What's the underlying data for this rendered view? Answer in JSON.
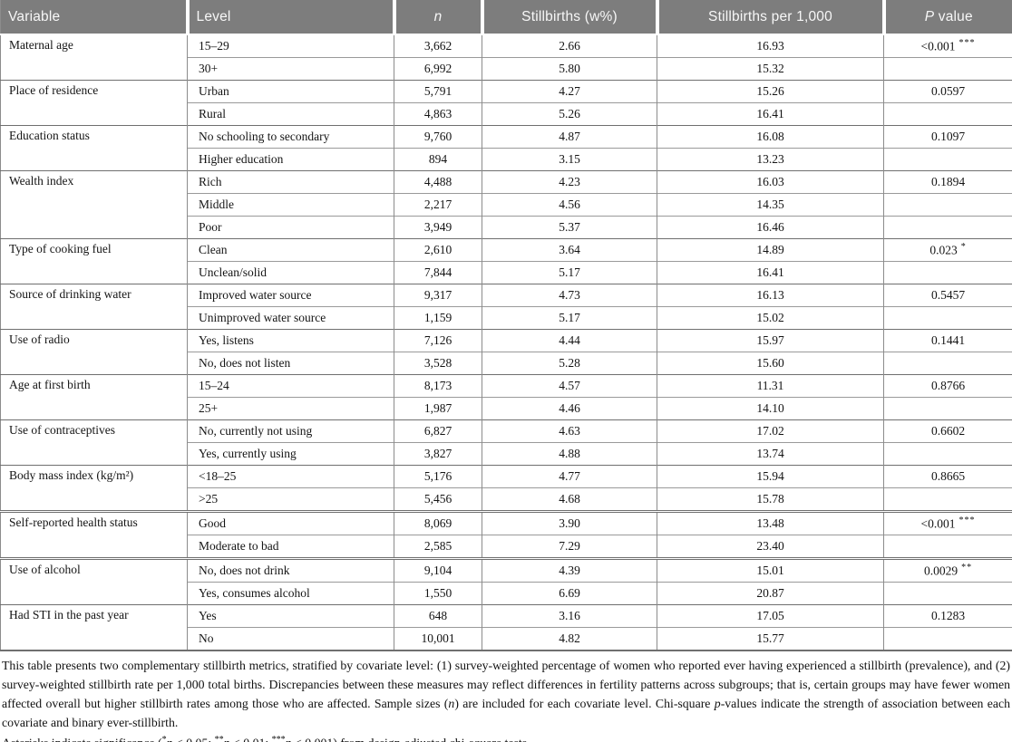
{
  "colors": {
    "header_background": "#7d7d7d",
    "header_text": "#f7f7f7",
    "body_text": "#141414",
    "grid_line": "#8c8c8c"
  },
  "table": {
    "columns": [
      {
        "name": "variable",
        "segments": [
          {
            "t": "Variable"
          }
        ]
      },
      {
        "name": "level",
        "segments": [
          {
            "t": "Level"
          }
        ]
      },
      {
        "name": "n",
        "segments": [
          {
            "t": "n",
            "i": true
          }
        ]
      },
      {
        "name": "stillbirths-weighted-pct",
        "segments": [
          {
            "t": "Stillbirths (w%)"
          }
        ]
      },
      {
        "name": "stillbirths-per-1000",
        "segments": [
          {
            "t": "Stillbirths per 1,000"
          }
        ]
      },
      {
        "name": "p-value",
        "segments": [
          {
            "t": "P",
            "i": true
          },
          {
            "t": " value"
          }
        ]
      }
    ],
    "groups": [
      {
        "variable": "Maternal age",
        "rows": [
          {
            "level": "15–29",
            "n": "3,662",
            "pct": "2.66",
            "rate": "16.93",
            "p": "<0.001",
            "sig": "***"
          },
          {
            "level": "30+",
            "n": "6,992",
            "pct": "5.80",
            "rate": "15.32",
            "p": "",
            "sig": ""
          }
        ]
      },
      {
        "variable": "Place of residence",
        "rows": [
          {
            "level": "Urban",
            "n": "5,791",
            "pct": "4.27",
            "rate": "15.26",
            "p": "0.0597",
            "sig": ""
          },
          {
            "level": "Rural",
            "n": "4,863",
            "pct": "5.26",
            "rate": "16.41",
            "p": "",
            "sig": ""
          }
        ]
      },
      {
        "variable": "Education status",
        "rows": [
          {
            "level": "No schooling to secondary",
            "n": "9,760",
            "pct": "4.87",
            "rate": "16.08",
            "p": "0.1097",
            "sig": ""
          },
          {
            "level": "Higher education",
            "n": "894",
            "pct": "3.15",
            "rate": "13.23",
            "p": "",
            "sig": ""
          }
        ]
      },
      {
        "variable": "Wealth index",
        "rows": [
          {
            "level": "Rich",
            "n": "4,488",
            "pct": "4.23",
            "rate": "16.03",
            "p": "0.1894",
            "sig": ""
          },
          {
            "level": "Middle",
            "n": "2,217",
            "pct": "4.56",
            "rate": "14.35",
            "p": "",
            "sig": ""
          },
          {
            "level": "Poor",
            "n": "3,949",
            "pct": "5.37",
            "rate": "16.46",
            "p": "",
            "sig": ""
          }
        ]
      },
      {
        "variable": "Type of cooking fuel",
        "rows": [
          {
            "level": "Clean",
            "n": "2,610",
            "pct": "3.64",
            "rate": "14.89",
            "p": "0.023",
            "sig": "*"
          },
          {
            "level": "Unclean/solid",
            "n": "7,844",
            "pct": "5.17",
            "rate": "16.41",
            "p": "",
            "sig": ""
          }
        ]
      },
      {
        "variable": "Source of drinking water",
        "rows": [
          {
            "level": "Improved water source",
            "n": "9,317",
            "pct": "4.73",
            "rate": "16.13",
            "p": "0.5457",
            "sig": ""
          },
          {
            "level": "Unimproved water source",
            "n": "1,159",
            "pct": "5.17",
            "rate": "15.02",
            "p": "",
            "sig": ""
          }
        ]
      },
      {
        "variable": "Use of radio",
        "rows": [
          {
            "level": "Yes, listens",
            "n": "7,126",
            "pct": "4.44",
            "rate": "15.97",
            "p": "0.1441",
            "sig": ""
          },
          {
            "level": "No, does not listen",
            "n": "3,528",
            "pct": "5.28",
            "rate": "15.60",
            "p": "",
            "sig": ""
          }
        ]
      },
      {
        "variable": "Age at first birth",
        "rows": [
          {
            "level": "15–24",
            "n": "8,173",
            "pct": "4.57",
            "rate": "11.31",
            "p": "0.8766",
            "sig": ""
          },
          {
            "level": "25+",
            "n": "1,987",
            "pct": "4.46",
            "rate": "14.10",
            "p": "",
            "sig": ""
          }
        ]
      },
      {
        "variable": "Use of contraceptives",
        "rows": [
          {
            "level": "No, currently not using",
            "n": "6,827",
            "pct": "4.63",
            "rate": "17.02",
            "p": "0.6602",
            "sig": ""
          },
          {
            "level": "Yes, currently using",
            "n": "3,827",
            "pct": "4.88",
            "rate": "13.74",
            "p": "",
            "sig": ""
          }
        ]
      },
      {
        "variable": "Body mass index (kg/m²)",
        "rows": [
          {
            "level": "<18–25",
            "n": "5,176",
            "pct": "4.77",
            "rate": "15.94",
            "p": "0.8665",
            "sig": ""
          },
          {
            "level": ">25",
            "n": "5,456",
            "pct": "4.68",
            "rate": "15.78",
            "p": "",
            "sig": ""
          }
        ]
      },
      {
        "variable": "Self-reported health status",
        "emphasized": true,
        "rows": [
          {
            "level": "Good",
            "n": "8,069",
            "pct": "3.90",
            "rate": "13.48",
            "p": "<0.001",
            "sig": "***"
          },
          {
            "level": "Moderate to bad",
            "n": "2,585",
            "pct": "7.29",
            "rate": "23.40",
            "p": "",
            "sig": ""
          }
        ]
      },
      {
        "variable": "Use of alcohol",
        "rows": [
          {
            "level": "No, does not drink",
            "n": "9,104",
            "pct": "4.39",
            "rate": "15.01",
            "p": "0.0029",
            "sig": "**"
          },
          {
            "level": "Yes, consumes alcohol",
            "n": "1,550",
            "pct": "6.69",
            "rate": "20.87",
            "p": "",
            "sig": ""
          }
        ]
      },
      {
        "variable": "Had STI in the past year",
        "rows": [
          {
            "level": "Yes",
            "n": "648",
            "pct": "3.16",
            "rate": "17.05",
            "p": "0.1283",
            "sig": ""
          },
          {
            "level": "No",
            "n": "10,001",
            "pct": "4.82",
            "rate": "15.77",
            "p": "",
            "sig": ""
          }
        ]
      }
    ]
  },
  "footnote": {
    "paragraph1": [
      {
        "t": "This table presents two complementary stillbirth metrics, stratified by covariate level: (1) survey-weighted percentage of women who reported ever having experienced a stillbirth (prevalence), and (2) survey-weighted stillbirth rate per 1,000 total births. Discrepancies between these measures may reflect differences in fertility patterns across subgroups; that is, certain groups may have fewer women affected overall but higher stillbirth rates among those who are affected. Sample sizes ("
      },
      {
        "t": "n",
        "i": true
      },
      {
        "t": ") are included for each covariate level. Chi-square "
      },
      {
        "t": "p",
        "i": true
      },
      {
        "t": "-values indicate the strength of association between each covariate and binary ever-stillbirth."
      }
    ],
    "paragraph2": [
      {
        "t": "Asterisks indicate significance ("
      },
      {
        "t": "*",
        "sup": true
      },
      {
        "t": "p",
        "i": true
      },
      {
        "t": " < 0.05; "
      },
      {
        "t": "**",
        "sup": true
      },
      {
        "t": "p",
        "i": true
      },
      {
        "t": " < 0.01; "
      },
      {
        "t": "***",
        "sup": true
      },
      {
        "t": "p",
        "i": true
      },
      {
        "t": " < 0.001) from design-adjusted chi-square tests."
      }
    ]
  }
}
